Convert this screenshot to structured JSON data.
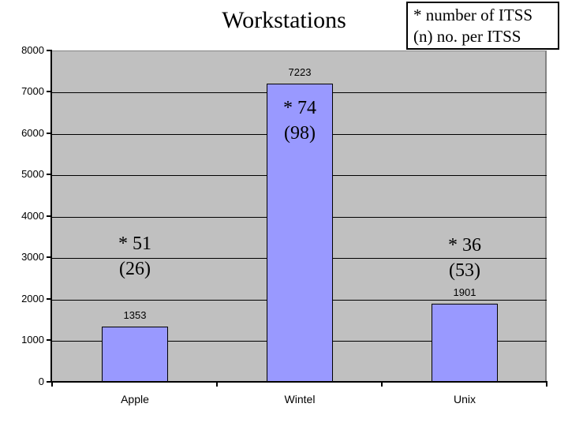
{
  "chart_data": {
    "type": "bar",
    "title": "Workstations",
    "categories": [
      "Apple",
      "Wintel",
      "Unix"
    ],
    "values": [
      1353,
      7223,
      1901
    ],
    "value_labels": [
      "1353",
      "7223",
      "1901"
    ],
    "bar_annotations": [
      {
        "line1": "* 51",
        "line2": "(26)"
      },
      {
        "line1": "* 74",
        "line2": "(98)"
      },
      {
        "line1": "* 36",
        "line2": "(53)"
      }
    ],
    "legend_note": [
      "* number of ITSS",
      "(n) no. per ITSS"
    ],
    "xlabel": "",
    "ylabel": "",
    "ylim": [
      0,
      8000
    ],
    "ytick_step": 1000,
    "grid": true,
    "legend_position": "top-right",
    "colors": {
      "bar_fill": "#9999ff",
      "bar_border": "#000000",
      "plot_background": "#c0c0c0",
      "plot_border": "#848484",
      "axis": "#000000",
      "text": "#000000",
      "page_background": "#ffffff"
    }
  }
}
